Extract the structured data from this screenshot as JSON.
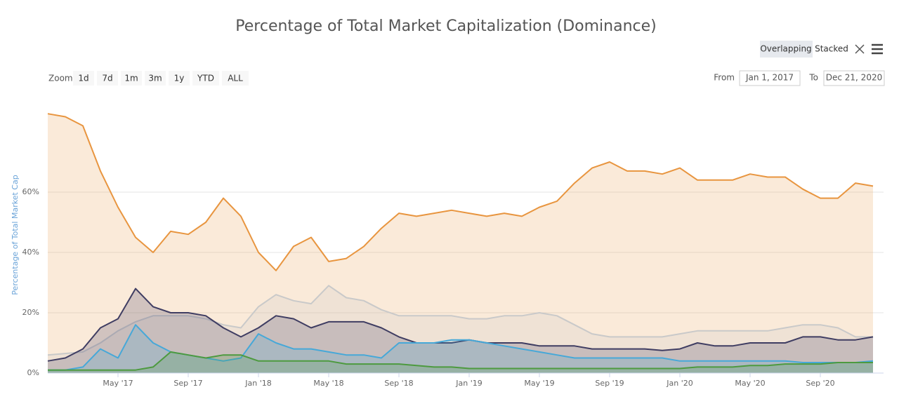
{
  "ui": {
    "modes": [
      "Overlapping",
      "Stacked"
    ],
    "zoom_label": "Zoom",
    "zoom": [
      "1d",
      "7d",
      "1m",
      "3m",
      "1y",
      "YTD",
      "ALL"
    ],
    "from_label": "From",
    "from": "Jan 1, 2017",
    "to_label": "To",
    "to": "Dec 21, 2020"
  },
  "chart_data": {
    "type": "area",
    "title": "Percentage of Total Market Capitalization (Dominance)",
    "y_label": "Percentage of Total Market Cap",
    "x": [
      "2017-01",
      "2017-02",
      "2017-03",
      "2017-04",
      "2017-05",
      "2017-06",
      "2017-07",
      "2017-08",
      "2017-09",
      "2017-10",
      "2017-11",
      "2017-12",
      "2018-01",
      "2018-02",
      "2018-03",
      "2018-04",
      "2018-05",
      "2018-06",
      "2018-07",
      "2018-08",
      "2018-09",
      "2018-10",
      "2018-11",
      "2018-12",
      "2019-01",
      "2019-02",
      "2019-03",
      "2019-04",
      "2019-05",
      "2019-06",
      "2019-07",
      "2019-08",
      "2019-09",
      "2019-10",
      "2019-11",
      "2019-12",
      "2020-01",
      "2020-02",
      "2020-03",
      "2020-04",
      "2020-05",
      "2020-06",
      "2020-07",
      "2020-08",
      "2020-09",
      "2020-10",
      "2020-11",
      "2020-12"
    ],
    "xlim": [
      "2017-01",
      "2020-12"
    ],
    "xticks": [
      {
        "value": "2017-05",
        "label": "May '17"
      },
      {
        "value": "2017-09",
        "label": "Sep '17"
      },
      {
        "value": "2018-01",
        "label": "Jan '18"
      },
      {
        "value": "2018-05",
        "label": "May '18"
      },
      {
        "value": "2018-09",
        "label": "Sep '18"
      },
      {
        "value": "2019-01",
        "label": "Jan '19"
      },
      {
        "value": "2019-05",
        "label": "May '19"
      },
      {
        "value": "2019-09",
        "label": "Sep '19"
      },
      {
        "value": "2020-01",
        "label": "Jan '20"
      },
      {
        "value": "2020-05",
        "label": "May '20"
      },
      {
        "value": "2020-09",
        "label": "Sep '20"
      }
    ],
    "ylim": [
      0,
      90
    ],
    "yticks": [
      {
        "value": 0,
        "label": "0%"
      },
      {
        "value": 20,
        "label": "20%"
      },
      {
        "value": 40,
        "label": "40%"
      },
      {
        "value": 60,
        "label": "60%"
      }
    ],
    "grid": true,
    "series": [
      {
        "color": "#e8953f",
        "values": [
          86,
          85,
          82,
          67,
          55,
          45,
          40,
          47,
          46,
          50,
          58,
          52,
          40,
          34,
          42,
          45,
          37,
          38,
          42,
          48,
          53,
          52,
          53,
          54,
          53,
          52,
          53,
          52,
          55,
          57,
          63,
          68,
          70,
          67,
          67,
          66,
          68,
          64,
          64,
          64,
          66,
          65,
          65,
          61,
          58,
          58,
          63,
          62
        ]
      },
      {
        "color": "#c9c9c9",
        "values": [
          6,
          6.5,
          7,
          10,
          14,
          17,
          19,
          19,
          19,
          18,
          16,
          15,
          22,
          26,
          24,
          23,
          29,
          25,
          24,
          21,
          19,
          19,
          19,
          19,
          18,
          18,
          19,
          19,
          20,
          19,
          16,
          13,
          12,
          12,
          12,
          12,
          13,
          14,
          14,
          14,
          14,
          14,
          15,
          16,
          16,
          15,
          12,
          12
        ]
      },
      {
        "color": "#3f3d62",
        "values": [
          4,
          5,
          8,
          15,
          18,
          28,
          22,
          20,
          20,
          19,
          15,
          12,
          15,
          19,
          18,
          15,
          17,
          17,
          17,
          15,
          12,
          10,
          10,
          10,
          11,
          10,
          10,
          10,
          9,
          9,
          9,
          8,
          8,
          8,
          8,
          7.5,
          8,
          10,
          9,
          9,
          10,
          10,
          10,
          12,
          12,
          11,
          11,
          12
        ]
      },
      {
        "color": "#46a8d8",
        "values": [
          1,
          1,
          2,
          8,
          5,
          16,
          10,
          7,
          6,
          5,
          4,
          5,
          13,
          10,
          8,
          8,
          7,
          6,
          6,
          5,
          10,
          10,
          10,
          11,
          11,
          10,
          9,
          8,
          7,
          6,
          5,
          5,
          5,
          5,
          5,
          5,
          4,
          4,
          4,
          4,
          4,
          4,
          4,
          3.5,
          3.5,
          3.5,
          3.5,
          4
        ]
      },
      {
        "color": "#4d9a3f",
        "values": [
          1,
          1,
          1,
          1,
          1,
          1,
          2,
          7,
          6,
          5,
          6,
          6,
          4,
          4,
          4,
          4,
          4,
          3,
          3,
          3,
          3,
          2.5,
          2,
          2,
          1.5,
          1.5,
          1.5,
          1.5,
          1.5,
          1.5,
          1.5,
          1.5,
          1.5,
          1.5,
          1.5,
          1.5,
          1.5,
          2,
          2,
          2,
          2.5,
          2.5,
          3,
          3,
          3,
          3.5,
          3.5,
          3.5
        ]
      }
    ]
  }
}
